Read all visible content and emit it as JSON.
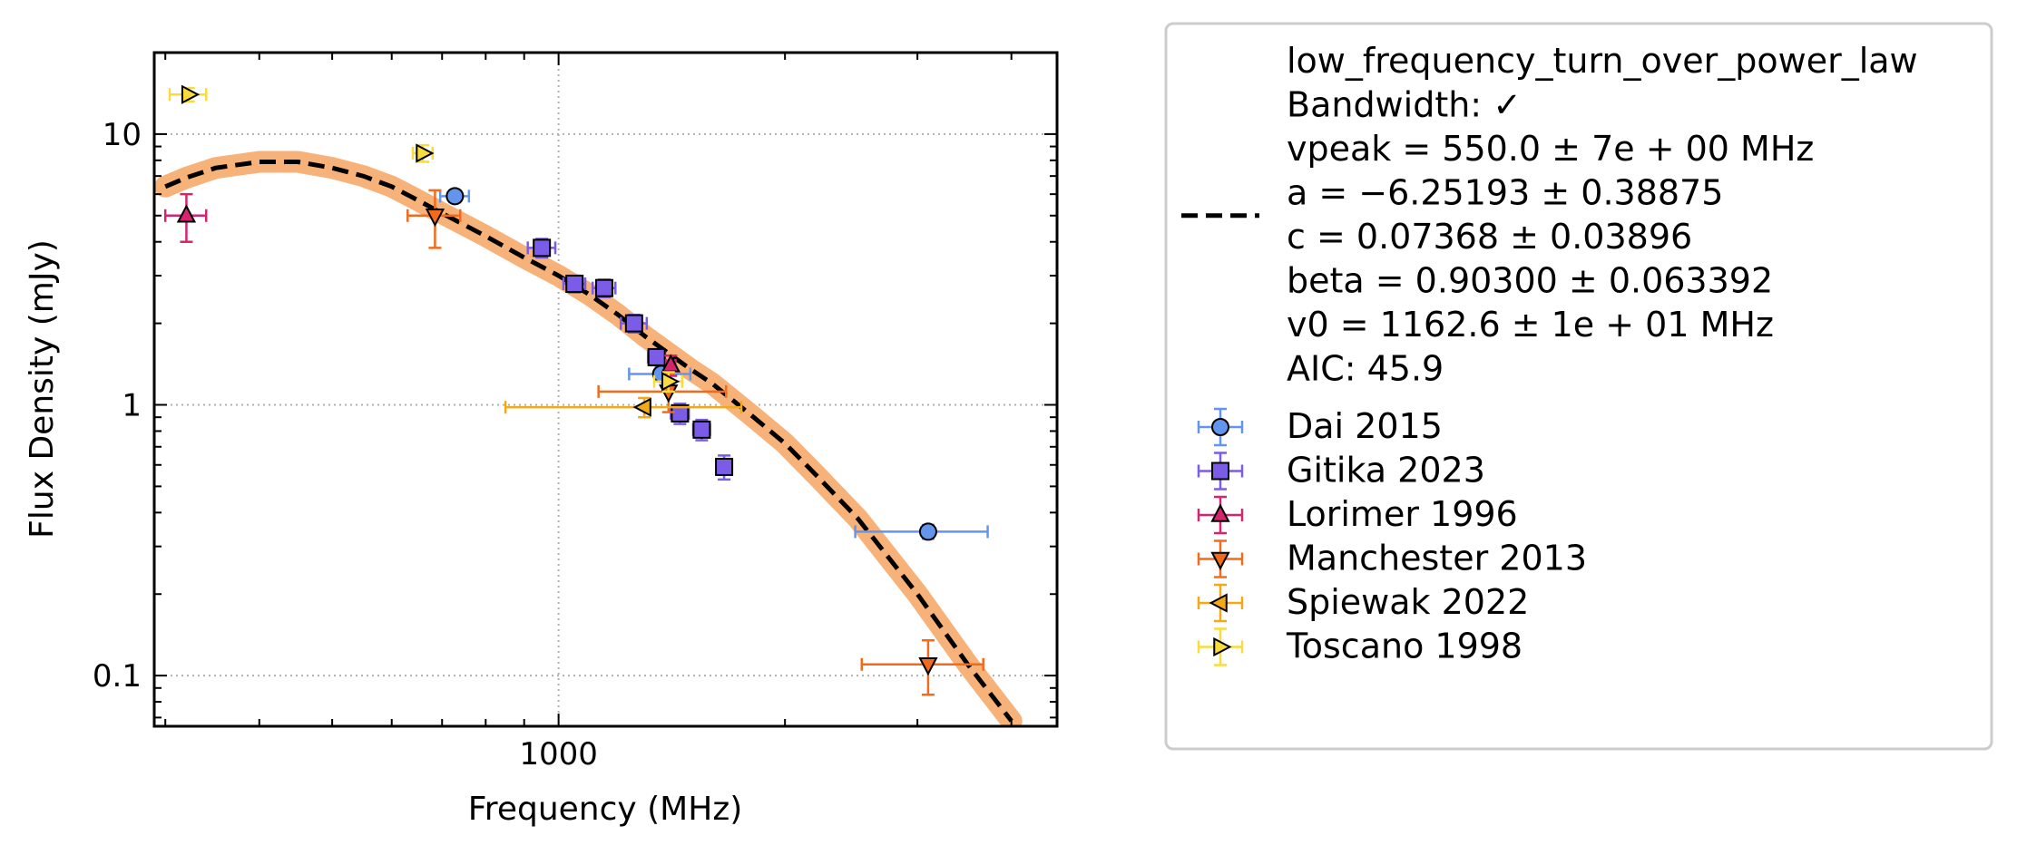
{
  "chart_data": {
    "type": "scatter",
    "xlabel": "Frequency (MHz)",
    "ylabel": "Flux Density (mJy)",
    "xscale": "log",
    "yscale": "log",
    "xlim": [
      290,
      4600
    ],
    "ylim": [
      0.065,
      20
    ],
    "x_ticks": [
      {
        "value": 1000,
        "label": "1000"
      }
    ],
    "y_ticks": [
      {
        "value": 0.1,
        "label": "0.1"
      },
      {
        "value": 1,
        "label": "1"
      },
      {
        "value": 10,
        "label": "10"
      }
    ],
    "grid": true,
    "legend_position": "outside-right",
    "fit": {
      "legend_lines": [
        "low_frequency_turn_over_power_law",
        "Bandwidth: ✓",
        "vpeak = 550.0 ± 7e + 00 MHz",
        "a = −6.25193 ± 0.38875",
        "c = 0.07368 ± 0.03896",
        "beta = 0.90300 ± 0.063392",
        "v0 = 1162.6 ± 1e + 01 MHz",
        "AIC: 45.9"
      ],
      "line_color": "#000000",
      "band_color": "#f7b27a",
      "curve": [
        [
          300,
          6.4
        ],
        [
          320,
          6.9
        ],
        [
          350,
          7.5
        ],
        [
          400,
          7.9
        ],
        [
          450,
          7.9
        ],
        [
          500,
          7.5
        ],
        [
          550,
          7.0
        ],
        [
          600,
          6.4
        ],
        [
          650,
          5.7
        ],
        [
          700,
          5.1
        ],
        [
          800,
          4.2
        ],
        [
          900,
          3.5
        ],
        [
          1000,
          3.0
        ],
        [
          1100,
          2.55
        ],
        [
          1200,
          2.15
        ],
        [
          1300,
          1.8
        ],
        [
          1400,
          1.55
        ],
        [
          1500,
          1.35
        ],
        [
          1600,
          1.2
        ],
        [
          1800,
          0.92
        ],
        [
          2000,
          0.72
        ],
        [
          2200,
          0.55
        ],
        [
          2500,
          0.38
        ],
        [
          3000,
          0.2
        ],
        [
          3500,
          0.11
        ],
        [
          4000,
          0.068
        ]
      ]
    },
    "series": [
      {
        "name": "Dai 2015",
        "marker": "circle",
        "color": "#6495ed",
        "points": [
          {
            "x": 728,
            "y": 5.9,
            "xerr": 32,
            "yerr": 0.3
          },
          {
            "x": 1369,
            "y": 1.3,
            "xerr": 128,
            "yerr": 0.08
          },
          {
            "x": 3100,
            "y": 0.34,
            "xerr": 620,
            "yerr": 0.02
          }
        ]
      },
      {
        "name": "Gitika 2023",
        "marker": "square",
        "color": "#7b5ce6",
        "points": [
          {
            "x": 950,
            "y": 3.8,
            "xerr": 40,
            "yerr": 0.3
          },
          {
            "x": 1050,
            "y": 2.8,
            "xerr": 35,
            "yerr": 0.2
          },
          {
            "x": 1150,
            "y": 2.7,
            "xerr": 40,
            "yerr": 0.2
          },
          {
            "x": 1260,
            "y": 2.0,
            "xerr": 50,
            "yerr": 0.15
          },
          {
            "x": 1350,
            "y": 1.5,
            "xerr": 35,
            "yerr": 0.1
          },
          {
            "x": 1450,
            "y": 0.93,
            "xerr": 40,
            "yerr": 0.08
          },
          {
            "x": 1550,
            "y": 0.81,
            "xerr": 40,
            "yerr": 0.07
          },
          {
            "x": 1660,
            "y": 0.59,
            "xerr": 30,
            "yerr": 0.06
          }
        ]
      },
      {
        "name": "Lorimer 1996",
        "marker": "triangle-up",
        "color": "#d6246e",
        "points": [
          {
            "x": 320,
            "y": 5.0,
            "xerr": 20,
            "yerr": 1.0
          },
          {
            "x": 1410,
            "y": 1.4,
            "xerr": 20,
            "yerr": 0.12
          }
        ]
      },
      {
        "name": "Manchester 2013",
        "marker": "triangle-down",
        "color": "#f26a1b",
        "points": [
          {
            "x": 685,
            "y": 5.0,
            "xerr": 55,
            "yerr": 1.2
          },
          {
            "x": 1400,
            "y": 1.12,
            "xerr": 270,
            "yerr": 0.18
          },
          {
            "x": 3100,
            "y": 0.11,
            "xerr": 570,
            "yerr": 0.025
          }
        ]
      },
      {
        "name": "Spiewak 2022",
        "marker": "triangle-left",
        "color": "#f2a918",
        "points": [
          {
            "x": 1300,
            "y": 0.98,
            "xerr": 450,
            "yerr": 0.08
          }
        ]
      },
      {
        "name": "Toscano 1998",
        "marker": "triangle-right",
        "color": "#f7dc3b",
        "points": [
          {
            "x": 322,
            "y": 14.0,
            "xerr": 18,
            "yerr": 0.8
          },
          {
            "x": 660,
            "y": 8.5,
            "xerr": 20,
            "yerr": 0.6
          },
          {
            "x": 1400,
            "y": 1.22,
            "xerr": 60,
            "yerr": 0.1
          }
        ]
      }
    ]
  }
}
